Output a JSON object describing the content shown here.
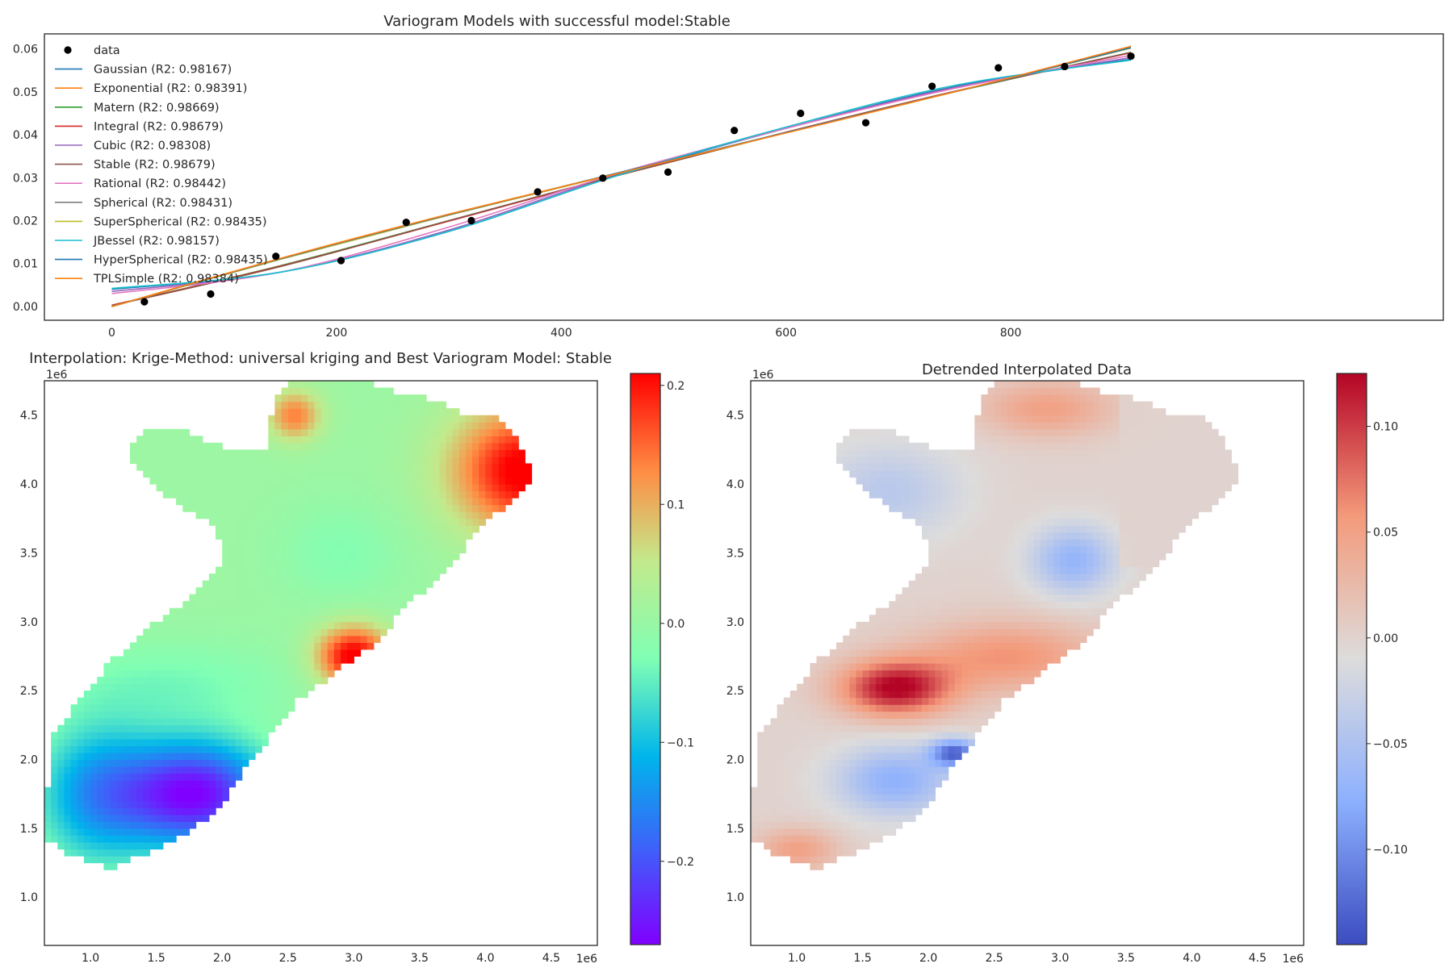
{
  "chart_data": [
    {
      "type": "scatter",
      "title": "Variogram Models with successful model:Stable",
      "xlim": [
        -60,
        1185
      ],
      "ylim": [
        -0.0032,
        0.0635
      ],
      "xticks": [
        0,
        200,
        400,
        600,
        800
      ],
      "xtick_labels": [
        "0",
        "200",
        "400",
        "600",
        "800"
      ],
      "yticks": [
        0,
        0.01,
        0.02,
        0.03,
        0.04,
        0.05,
        0.06
      ],
      "ytick_labels": [
        "0.00",
        "0.01",
        "0.02",
        "0.03",
        "0.04",
        "0.05",
        "0.06"
      ],
      "legend_position": "upper-left",
      "scatter": {
        "name": "data",
        "color": "#000000",
        "x": [
          29,
          88,
          146,
          204,
          262,
          320,
          379,
          437,
          495,
          554,
          613,
          671,
          730,
          789,
          848,
          907
        ],
        "y": [
          0.0011,
          0.0029,
          0.0117,
          0.0107,
          0.0196,
          0.02,
          0.0267,
          0.0299,
          0.0313,
          0.041,
          0.045,
          0.0428,
          0.0513,
          0.0556,
          0.0559,
          0.0583
        ]
      },
      "series": [
        {
          "name": "Gaussian (R2: 0.98167)",
          "color": "#1f77b4",
          "x": [
            0,
            150,
            300,
            450,
            600,
            750,
            907
          ],
          "y": [
            0.004,
            0.008,
            0.0175,
            0.0305,
            0.0415,
            0.0512,
            0.0576
          ]
        },
        {
          "name": "Exponential (R2: 0.98391)",
          "color": "#ff7f0e",
          "x": [
            0,
            150,
            300,
            450,
            600,
            750,
            907
          ],
          "y": [
            0.0,
            0.0112,
            0.0215,
            0.031,
            0.0405,
            0.05,
            0.0605
          ]
        },
        {
          "name": "Matern (R2: 0.98669)",
          "color": "#2ca02c",
          "x": [
            0,
            150,
            300,
            450,
            600,
            750,
            907
          ],
          "y": [
            0.0003,
            0.0095,
            0.02,
            0.0305,
            0.0405,
            0.05,
            0.0592
          ]
        },
        {
          "name": "Integral (R2: 0.98679)",
          "color": "#d62728",
          "x": [
            0,
            150,
            300,
            450,
            600,
            750,
            907
          ],
          "y": [
            0.0003,
            0.0094,
            0.0199,
            0.0305,
            0.0406,
            0.0501,
            0.0591
          ]
        },
        {
          "name": "Cubic (R2: 0.98308)",
          "color": "#9467bd",
          "x": [
            0,
            150,
            300,
            450,
            600,
            750,
            907
          ],
          "y": [
            0.0035,
            0.008,
            0.0178,
            0.0308,
            0.0415,
            0.051,
            0.058
          ]
        },
        {
          "name": "Stable (R2: 0.98679)",
          "color": "#8c564b",
          "x": [
            0,
            150,
            300,
            450,
            600,
            750,
            907
          ],
          "y": [
            0.0002,
            0.0093,
            0.02,
            0.0306,
            0.0406,
            0.0501,
            0.0592
          ]
        },
        {
          "name": "Rational (R2: 0.98442)",
          "color": "#e377c2",
          "x": [
            0,
            150,
            300,
            450,
            600,
            750,
            907
          ],
          "y": [
            0.003,
            0.008,
            0.0185,
            0.031,
            0.0415,
            0.0508,
            0.0585
          ]
        },
        {
          "name": "Spherical (R2: 0.98431)",
          "color": "#7f7f7f",
          "x": [
            0,
            150,
            300,
            450,
            600,
            750,
            907
          ],
          "y": [
            0.0,
            0.011,
            0.0213,
            0.031,
            0.0405,
            0.05,
            0.0602
          ]
        },
        {
          "name": "SuperSpherical (R2: 0.98435)",
          "color": "#bcbd22",
          "x": [
            0,
            150,
            300,
            450,
            600,
            750,
            907
          ],
          "y": [
            0.0,
            0.011,
            0.0213,
            0.031,
            0.0405,
            0.05,
            0.0602
          ]
        },
        {
          "name": "JBessel (R2: 0.98157)",
          "color": "#17becf",
          "x": [
            0,
            150,
            300,
            450,
            600,
            750,
            907
          ],
          "y": [
            0.0042,
            0.008,
            0.0175,
            0.0305,
            0.0418,
            0.0515,
            0.0574
          ]
        },
        {
          "name": "HyperSpherical (R2: 0.98435)",
          "color": "#1f77b4",
          "x": [
            0,
            150,
            300,
            450,
            600,
            750,
            907
          ],
          "y": [
            0.0,
            0.0111,
            0.0214,
            0.0311,
            0.0405,
            0.05,
            0.0603
          ]
        },
        {
          "name": "TPLSimple (R2: 0.98384)",
          "color": "#ff7f0e",
          "x": [
            0,
            150,
            300,
            450,
            600,
            750,
            907
          ],
          "y": [
            0.0,
            0.0112,
            0.0215,
            0.031,
            0.0404,
            0.05,
            0.0606
          ]
        }
      ]
    },
    {
      "type": "heatmap",
      "title": "Interpolation: Krige-Method: universal kriging and Best Variogram Model: Stable",
      "colormap": "rainbow",
      "xlim": [
        650000,
        4850000
      ],
      "ylim": [
        650000,
        4750000
      ],
      "x_offset_label": "1e6",
      "y_offset_label": "1e6",
      "xticks": [
        1.0,
        1.5,
        2.0,
        2.5,
        3.0,
        3.5,
        4.0,
        4.5
      ],
      "xtick_labels": [
        "1.0",
        "1.5",
        "2.0",
        "2.5",
        "3.0",
        "3.5",
        "4.0",
        "4.5"
      ],
      "yticks": [
        1.0,
        1.5,
        2.0,
        2.5,
        3.0,
        3.5,
        4.0,
        4.5
      ],
      "ytick_labels": [
        "1.0",
        "1.5",
        "2.0",
        "2.5",
        "3.0",
        "3.5",
        "4.0",
        "4.5"
      ],
      "colorbar_range": [
        -0.27,
        0.21
      ],
      "colorbar_ticks": [
        0.2,
        0.1,
        0.0,
        -0.1,
        -0.2
      ],
      "colorbar_tick_labels": [
        "0.2",
        "0.1",
        "0.0",
        "−0.1",
        "−0.2"
      ]
    },
    {
      "type": "heatmap",
      "title": "Detrended Interpolated Data",
      "colormap": "coolwarm",
      "xlim": [
        650000,
        4850000
      ],
      "ylim": [
        650000,
        4750000
      ],
      "x_offset_label": "1e6",
      "y_offset_label": "1e6",
      "xticks": [
        1.0,
        1.5,
        2.0,
        2.5,
        3.0,
        3.5,
        4.0,
        4.5
      ],
      "xtick_labels": [
        "1.0",
        "1.5",
        "2.0",
        "2.5",
        "3.0",
        "3.5",
        "4.0",
        "4.5"
      ],
      "yticks": [
        1.0,
        1.5,
        2.0,
        2.5,
        3.0,
        3.5,
        4.0,
        4.5
      ],
      "ytick_labels": [
        "1.0",
        "1.5",
        "2.0",
        "2.5",
        "3.0",
        "3.5",
        "4.0",
        "4.5"
      ],
      "colorbar_range": [
        -0.145,
        0.125
      ],
      "colorbar_ticks": [
        0.1,
        0.05,
        0.0,
        -0.05,
        -0.1
      ],
      "colorbar_tick_labels": [
        "0.10",
        "0.05",
        "0.00",
        "−0.05",
        "−0.10"
      ]
    }
  ]
}
